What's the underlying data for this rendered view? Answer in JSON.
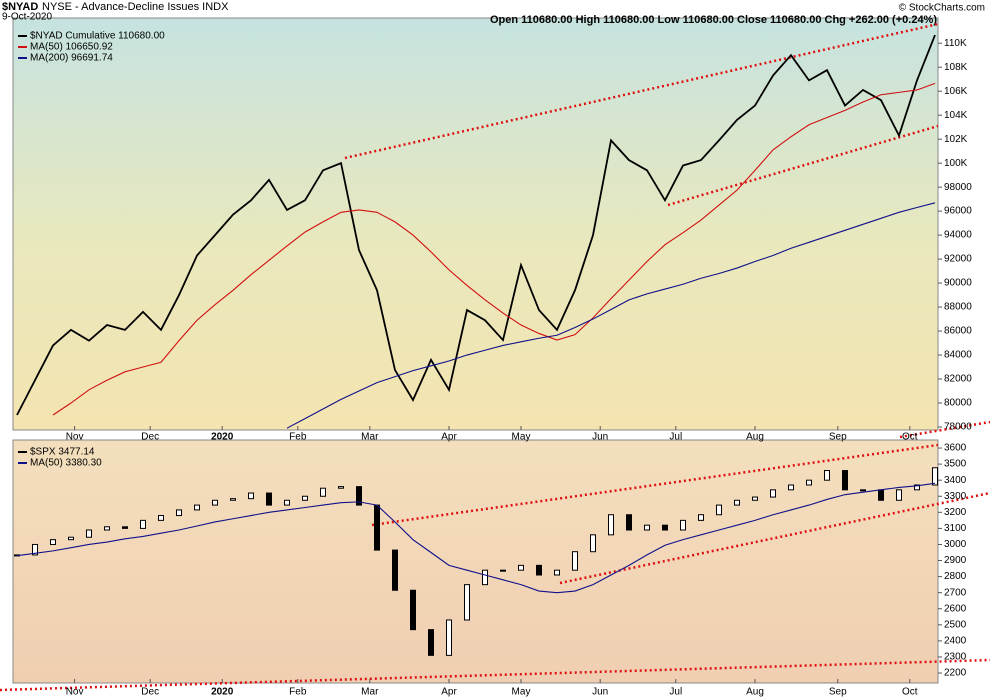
{
  "chart_data": [
    {
      "type": "line",
      "symbol": "$NYAD",
      "title": "NYSE - Advance-Decline Issues INDX",
      "date": "9-Oct-2020",
      "quote": "Open 110680.00  High 110680.00  Low 110680.00  Close 110680.00  Chg +262.00 (+0.24%)",
      "watermark": "© StockCharts.com",
      "x": [
        0,
        5,
        10,
        15,
        20,
        25,
        30,
        35,
        40,
        45,
        50,
        55,
        60,
        65,
        70,
        75,
        80,
        85,
        90,
        95,
        100,
        105,
        110,
        115,
        120,
        125,
        130,
        135,
        140,
        145,
        150,
        155,
        160,
        165,
        170,
        175,
        180,
        185,
        190,
        195,
        200,
        205,
        210,
        215,
        220,
        225,
        230,
        235,
        240,
        245,
        250,
        255
      ],
      "xlim": [
        0,
        255
      ],
      "xticks": [
        {
          "value": 16,
          "label": "Nov"
        },
        {
          "value": 37,
          "label": "Dec"
        },
        {
          "value": 57,
          "label": "2020"
        },
        {
          "value": 78,
          "label": "Feb"
        },
        {
          "value": 98,
          "label": "Mar"
        },
        {
          "value": 120,
          "label": "Apr"
        },
        {
          "value": 140,
          "label": "May"
        },
        {
          "value": 162,
          "label": "Jun"
        },
        {
          "value": 183,
          "label": "Jul"
        },
        {
          "value": 205,
          "label": "Aug"
        },
        {
          "value": 228,
          "label": "Sep"
        },
        {
          "value": 248,
          "label": "Oct"
        }
      ],
      "ylim": [
        77750,
        112100
      ],
      "yticks": [
        {
          "value": 78000,
          "label": "78000"
        },
        {
          "value": 80000,
          "label": "80000"
        },
        {
          "value": 82000,
          "label": "82000"
        },
        {
          "value": 84000,
          "label": "84000"
        },
        {
          "value": 86000,
          "label": "86000"
        },
        {
          "value": 88000,
          "label": "88000"
        },
        {
          "value": 90000,
          "label": "90000"
        },
        {
          "value": 92000,
          "label": "92000"
        },
        {
          "value": 94000,
          "label": "94000"
        },
        {
          "value": 96000,
          "label": "96000"
        },
        {
          "value": 98000,
          "label": "98000"
        },
        {
          "value": 100000,
          "label": "100K"
        },
        {
          "value": 102000,
          "label": "102K"
        },
        {
          "value": 104000,
          "label": "104K"
        },
        {
          "value": 106000,
          "label": "106K"
        },
        {
          "value": 108000,
          "label": "108K"
        },
        {
          "value": 110000,
          "label": "110K"
        }
      ],
      "series": [
        {
          "name": "$NYAD Cumulative 110680.00",
          "color": "#000000",
          "values": [
            79000,
            81900,
            84800,
            86100,
            85200,
            86500,
            86100,
            87600,
            86100,
            89000,
            92300,
            94000,
            95700,
            96900,
            98600,
            96100,
            96900,
            99400,
            100000,
            92750,
            89400,
            82750,
            80250,
            83600,
            81100,
            87750,
            86900,
            85250,
            91500,
            87750,
            86100,
            89400,
            94000,
            101900,
            100250,
            99400,
            96900,
            99800,
            100250,
            101900,
            103600,
            104800,
            107300,
            109000,
            106900,
            107750,
            104800,
            106100,
            105250,
            102300,
            106900,
            110680
          ]
        },
        {
          "name": "MA(50) 106650.92",
          "color": "#d01010",
          "values": [
            null,
            null,
            79000,
            80000,
            81100,
            81900,
            82600,
            83000,
            83400,
            85200,
            86900,
            88200,
            89400,
            90700,
            91900,
            93100,
            94250,
            95100,
            95900,
            96100,
            95900,
            95100,
            94000,
            92600,
            91100,
            89800,
            88600,
            87500,
            86500,
            85800,
            85250,
            85700,
            87100,
            88700,
            90250,
            91800,
            93200,
            94200,
            95250,
            96500,
            97750,
            99400,
            101100,
            102200,
            103200,
            103800,
            104400,
            105100,
            105700,
            105900,
            106100,
            106650
          ]
        },
        {
          "name": "MA(200) 96691.74",
          "color": "#10108a",
          "values": [
            null,
            null,
            null,
            null,
            null,
            null,
            null,
            null,
            null,
            null,
            null,
            null,
            null,
            null,
            null,
            77900,
            78700,
            79500,
            80300,
            81000,
            81700,
            82200,
            82700,
            83100,
            83500,
            84000,
            84400,
            84800,
            85100,
            85400,
            85650,
            86300,
            87000,
            87800,
            88600,
            89100,
            89500,
            89900,
            90400,
            90800,
            91250,
            91800,
            92300,
            92900,
            93400,
            93900,
            94400,
            94900,
            95400,
            95900,
            96300,
            96690
          ]
        }
      ]
    },
    {
      "type": "candlestick",
      "x": [
        0,
        5,
        10,
        15,
        20,
        25,
        30,
        35,
        40,
        45,
        50,
        55,
        60,
        65,
        70,
        75,
        80,
        85,
        90,
        95,
        100,
        105,
        110,
        115,
        120,
        125,
        130,
        135,
        140,
        145,
        150,
        155,
        160,
        165,
        170,
        175,
        180,
        185,
        190,
        195,
        200,
        205,
        210,
        215,
        220,
        225,
        230,
        235,
        240,
        245,
        250,
        255
      ],
      "xlim": [
        0,
        255
      ],
      "xticks": [
        {
          "value": 16,
          "label": "Nov"
        },
        {
          "value": 37,
          "label": "Dec"
        },
        {
          "value": 57,
          "label": "2020"
        },
        {
          "value": 78,
          "label": "Feb"
        },
        {
          "value": 98,
          "label": "Mar"
        },
        {
          "value": 120,
          "label": "Apr"
        },
        {
          "value": 140,
          "label": "May"
        },
        {
          "value": 162,
          "label": "Jun"
        },
        {
          "value": 183,
          "label": "Jul"
        },
        {
          "value": 205,
          "label": "Aug"
        },
        {
          "value": 228,
          "label": "Sep"
        },
        {
          "value": 248,
          "label": "Oct"
        }
      ],
      "ylim": [
        2138,
        3650
      ],
      "yticks": [
        2200,
        2300,
        2400,
        2500,
        2600,
        2700,
        2800,
        2900,
        3000,
        3100,
        3200,
        3300,
        3400,
        3500,
        3600
      ],
      "series": [
        {
          "name": "$SPX 3477.14",
          "color": "#000000",
          "values": [
            2935,
            3000,
            3030,
            3045,
            3090,
            3110,
            3100,
            3150,
            3180,
            3215,
            3245,
            3275,
            3285,
            3320,
            3245,
            3275,
            3300,
            3350,
            3360,
            3245,
            2965,
            2715,
            2470,
            2310,
            2530,
            2750,
            2840,
            2840,
            2870,
            2810,
            2840,
            2955,
            3060,
            3185,
            3090,
            3120,
            3090,
            3150,
            3185,
            3245,
            3275,
            3295,
            3340,
            3370,
            3400,
            3460,
            3340,
            3340,
            3275,
            3340,
            3370,
            3477.14
          ]
        },
        {
          "name": "MA(50) 3380.30",
          "color": "#10108a",
          "values": [
            2930,
            2945,
            2960,
            2980,
            3000,
            3015,
            3035,
            3050,
            3070,
            3090,
            3115,
            3140,
            3160,
            3180,
            3200,
            3215,
            3230,
            3245,
            3260,
            3265,
            3245,
            3140,
            3030,
            2950,
            2870,
            2840,
            2810,
            2780,
            2750,
            2710,
            2700,
            2710,
            2750,
            2810,
            2870,
            2935,
            2995,
            3030,
            3060,
            3090,
            3120,
            3150,
            3185,
            3215,
            3245,
            3280,
            3310,
            3325,
            3340,
            3355,
            3365,
            3380.3
          ]
        }
      ]
    }
  ]
}
